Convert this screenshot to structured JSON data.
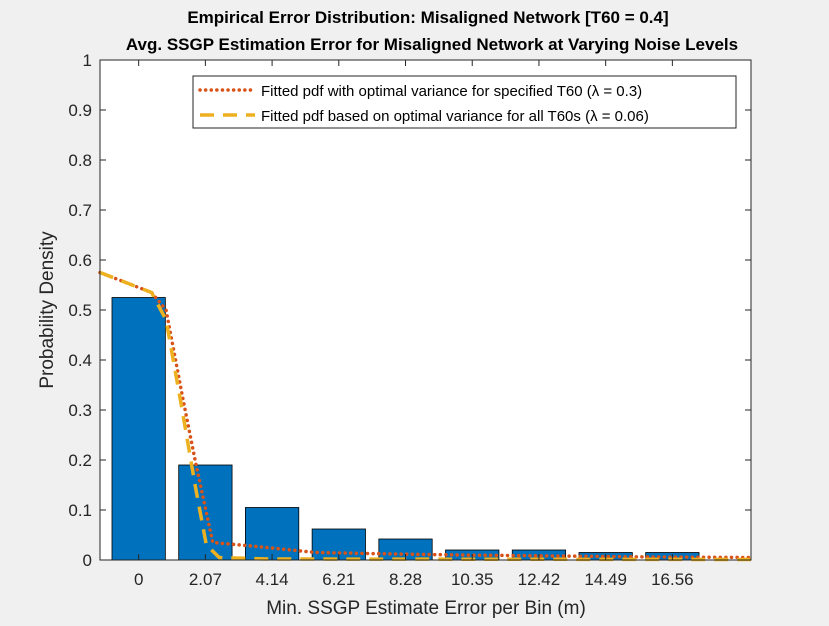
{
  "chart_data": {
    "type": "bar",
    "title": "Empirical Error Distribution: Misaligned Network [T60 = 0.4]",
    "subtitle": "Avg. SSGP Estimation Error for Misaligned Network at Varying Noise Levels",
    "xlabel": "Min. SSGP Estimate Error per Bin (m)",
    "ylabel": "Probability Density",
    "categories": [
      "0",
      "2.07",
      "4.14",
      "6.21",
      "8.28",
      "10.35",
      "12.42",
      "14.49",
      "16.56"
    ],
    "x": [
      0,
      2.07,
      4.14,
      6.21,
      8.28,
      10.35,
      12.42,
      14.49,
      16.56
    ],
    "values": [
      0.525,
      0.19,
      0.105,
      0.062,
      0.042,
      0.02,
      0.02,
      0.015,
      0.015
    ],
    "xlim": [
      -1.2,
      19.0
    ],
    "ylim": [
      0,
      1
    ],
    "yticks": [
      "0",
      "0.1",
      "0.2",
      "0.3",
      "0.4",
      "0.5",
      "0.6",
      "0.7",
      "0.8",
      "0.9",
      "1"
    ],
    "ytick_values": [
      0,
      0.1,
      0.2,
      0.3,
      0.4,
      0.5,
      0.6,
      0.7,
      0.8,
      0.9,
      1.0
    ],
    "grid": false,
    "legend_position": "top-right",
    "bar_color": "#0072bd",
    "series": [
      {
        "name": "Fitted pdf with optimal variance for specified T60  (λ = 0.3)",
        "style": "dotted",
        "color": "#d95319",
        "x": [
          -1.2,
          0.4,
          0.85,
          1.35,
          1.75,
          2.3,
          3.5,
          5.5,
          8.0,
          10.0,
          13.0,
          16.0,
          19.0
        ],
        "y": [
          0.575,
          0.535,
          0.5,
          0.33,
          0.2,
          0.035,
          0.028,
          0.015,
          0.012,
          0.01,
          0.008,
          0.006,
          0.005
        ]
      },
      {
        "name": "Fitted pdf based on optimal variance for all T60s (λ = 0.06)",
        "style": "dashed",
        "color": "#edb120",
        "x": [
          -1.2,
          0.4,
          0.85,
          1.35,
          1.75,
          2.1,
          2.5,
          4.0,
          19.0
        ],
        "y": [
          0.575,
          0.535,
          0.48,
          0.3,
          0.15,
          0.03,
          0.005,
          0.002,
          0.001
        ]
      }
    ]
  }
}
